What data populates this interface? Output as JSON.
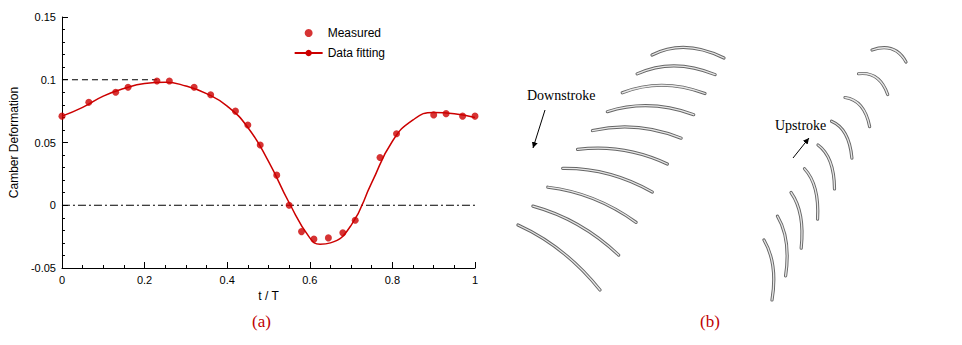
{
  "chart_data": {
    "type": "line",
    "panel": "(a)",
    "x_label": "t / T",
    "y_label": "Camber Deformation",
    "xlim": [
      0,
      1
    ],
    "xticks": [
      0,
      0.2,
      0.4,
      0.6,
      0.8,
      1
    ],
    "ylim": [
      -0.05,
      0.15
    ],
    "yticks": [
      -0.05,
      0,
      0.05,
      0.1,
      0.15
    ],
    "grid": false,
    "legend": "upper right",
    "series": [
      {
        "name": "Measured",
        "type": "scatter",
        "color": "#cc0000",
        "marker": "circle",
        "x": [
          0,
          0.065,
          0.13,
          0.16,
          0.23,
          0.26,
          0.32,
          0.36,
          0.42,
          0.45,
          0.48,
          0.52,
          0.55,
          0.58,
          0.61,
          0.645,
          0.68,
          0.71,
          0.77,
          0.81,
          0.9,
          0.93,
          0.97,
          1.0
        ],
        "values": [
          0.071,
          0.082,
          0.09,
          0.094,
          0.099,
          0.099,
          0.094,
          0.088,
          0.075,
          0.064,
          0.048,
          0.024,
          0.0,
          -0.021,
          -0.027,
          -0.026,
          -0.022,
          -0.012,
          0.038,
          0.057,
          0.072,
          0.073,
          0.071,
          0.071
        ]
      },
      {
        "name": "Data fitting",
        "type": "line",
        "color": "#cc0000",
        "line_style": "solid",
        "x": [
          0,
          0.05,
          0.1,
          0.15,
          0.2,
          0.25,
          0.3,
          0.35,
          0.4,
          0.45,
          0.5,
          0.55,
          0.6,
          0.625,
          0.65,
          0.7,
          0.75,
          0.8,
          0.85,
          0.9,
          0.95,
          1.0
        ],
        "values": [
          0.071,
          0.078,
          0.087,
          0.093,
          0.097,
          0.098,
          0.095,
          0.089,
          0.079,
          0.062,
          0.035,
          0.002,
          -0.026,
          -0.031,
          -0.03,
          -0.016,
          0.018,
          0.051,
          0.068,
          0.074,
          0.073,
          0.07
        ]
      }
    ],
    "reference_lines": [
      {
        "y": 0.1,
        "x": [
          0,
          0.23
        ],
        "line_style": "dashed",
        "color": "#000000"
      },
      {
        "y": 0,
        "x": [
          0,
          1
        ],
        "line_style": "dashdot",
        "color": "#000000"
      }
    ]
  },
  "diagram": {
    "panel": "(b)",
    "downstroke_label": "Downstroke",
    "upstroke_label": "Upstroke"
  }
}
